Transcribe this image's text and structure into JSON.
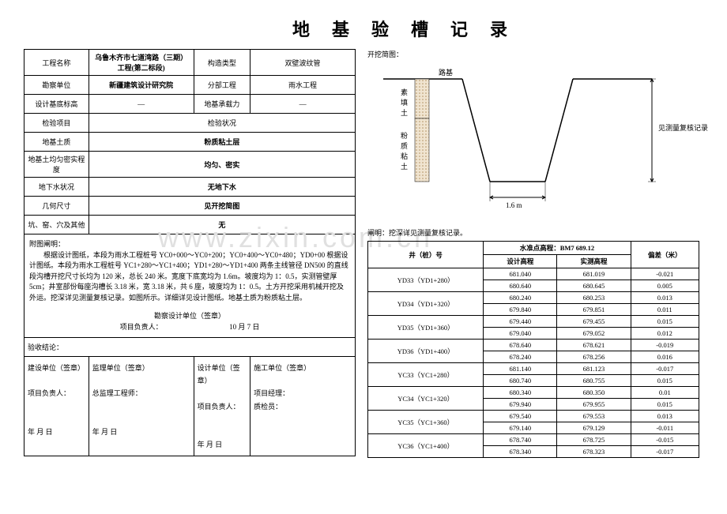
{
  "title": "地基验槽记录",
  "main_table": {
    "project_name_label": "工程名称",
    "project_name": "乌鲁木齐市七道湾路（三期）工程(第二标段)",
    "struct_type_label": "构造类型",
    "struct_type": "双壁波纹管",
    "survey_unit_label": "勘察单位",
    "survey_unit": "新疆建筑设计研究院",
    "sub_project_label": "分部工程",
    "sub_project": "雨水工程",
    "design_base_label": "设计基底标高",
    "design_base": "—",
    "bearing_label": "地基承载力",
    "bearing": "—",
    "inspect_item_label": "检验项目",
    "inspect_status_label": "检验状况",
    "soil_label": "地基土质",
    "soil": "粉质粘土层",
    "density_label": "地基土均匀密实程度",
    "density": "均匀、密实",
    "water_label": "地下水状况",
    "water": "无地下水",
    "geom_label": "几何尺寸",
    "geom": "见开挖简图",
    "holes_label": "坑、窑、穴及其他",
    "holes": "无"
  },
  "desc": {
    "header": "附图阐明：",
    "body": "根据设计图纸，本段为雨水工程桩号 YC0+000～YC0+200；YC0+400～YC0+480；YD0+00 根据设计图纸。本段为雨水工程桩号 YC1+280～YC1+400；YD1+280～YD1+400 两条主线管径 DN500 的直线段沟槽开挖尺寸长均为 120 米，总长 240 米。宽度下底宽均为 1.6m。坡度均为 1：0.5，实测管壁厚 5cm；井室部份每座沟槽长 3.18 米，宽 3.18 米，共 6 座，坡度均为 1：0.5。土方开挖采用机械开挖及外运。挖深详见测量复核记录。如图所示。详细详见设计图纸。地基土质为粉质粘土层。"
  },
  "sign_block": {
    "survey_design_unit": "勘察设计单位（签章）",
    "project_lead": "项目负责人：",
    "date": "10 月 7 日"
  },
  "accept": "验收结论：",
  "sign_table": {
    "c1": "建设单位（签章）",
    "c2": "监理单位（签章）",
    "c3": "设计单位（签章）",
    "c4": "施工单位（签章）",
    "r1": "项目负责人：",
    "r2": "总监理工程师：",
    "r3": "项目负责人：",
    "r4": "项目经理：",
    "r5": "质检员：",
    "date": "年  月  日"
  },
  "diagram": {
    "title": "开挖简图：",
    "soil1": "素填土",
    "soil2": "粉质粘土",
    "road": "路基",
    "width": "1.6 m",
    "right_note": "见测量复核记录"
  },
  "survey_note": "阐明：挖深详见测量复核记录。",
  "survey_table": {
    "col1": "井（桩）号",
    "col2_header": "水准点高程：BM7   689.12",
    "col2a": "设计高程",
    "col2b": "实测高程",
    "col3": "偏差（米）",
    "rows": [
      {
        "id": "YD33（YD1+280）",
        "d": [
          "681.040",
          "680.640"
        ],
        "m": [
          "681.019",
          "680.645"
        ],
        "dev": [
          "-0.021",
          "0.005"
        ]
      },
      {
        "id": "YD34（YD1+320）",
        "d": [
          "680.240",
          "679.840"
        ],
        "m": [
          "680.253",
          "679.851"
        ],
        "dev": [
          "0.013",
          "0.011"
        ]
      },
      {
        "id": "YD35（YD1+360）",
        "d": [
          "679.440",
          "679.040"
        ],
        "m": [
          "679.455",
          "679.052"
        ],
        "dev": [
          "0.015",
          "0.012"
        ]
      },
      {
        "id": "YD36（YD1+400）",
        "d": [
          "678.640",
          "678.240"
        ],
        "m": [
          "678.621",
          "678.256"
        ],
        "dev": [
          "-0.019",
          "0.016"
        ]
      },
      {
        "id": "YC33（YC1+280）",
        "d": [
          "681.140",
          "680.740"
        ],
        "m": [
          "681.123",
          "680.755"
        ],
        "dev": [
          "-0.017",
          "0.015"
        ]
      },
      {
        "id": "YC34（YC1+320）",
        "d": [
          "680.340",
          "679.940"
        ],
        "m": [
          "680.350",
          "679.955"
        ],
        "dev": [
          "0.01",
          "0.015"
        ]
      },
      {
        "id": "YC35（YC1+360）",
        "d": [
          "679.540",
          "679.140"
        ],
        "m": [
          "679.553",
          "679.129"
        ],
        "dev": [
          "0.013",
          "-0.011"
        ]
      },
      {
        "id": "YC36（YC1+400）",
        "d": [
          "678.740",
          "678.340"
        ],
        "m": [
          "678.725",
          "678.323"
        ],
        "dev": [
          "-0.015",
          "-0.017"
        ]
      }
    ]
  },
  "watermark": "www.zixin.com.cn",
  "colors": {
    "hatch": "#d8b89a",
    "line": "#000000"
  }
}
